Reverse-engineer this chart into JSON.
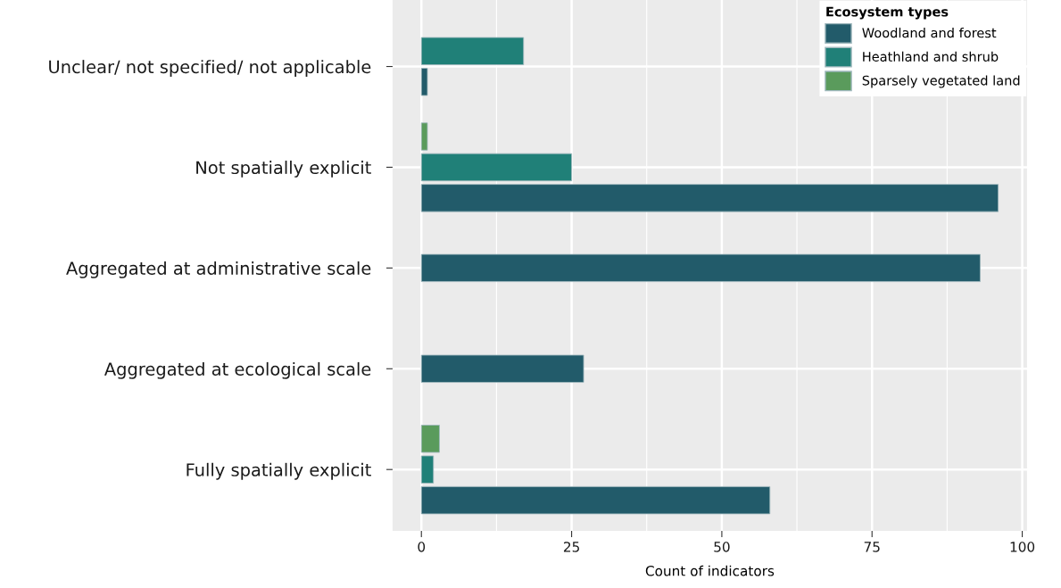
{
  "chart_data": {
    "type": "bar",
    "orientation": "horizontal",
    "xlabel": "Count of indicators",
    "legend_title": "Ecosystem types",
    "categories": [
      "Unclear/ not specified/ not applicable",
      "Not spatially explicit",
      "Aggregated at administrative scale",
      "Aggregated at ecological scale",
      "Fully spatially explicit"
    ],
    "series": [
      {
        "name": "Woodland and forest",
        "color": "#225b6a",
        "values": [
          1,
          96,
          93,
          27,
          58
        ]
      },
      {
        "name": "Heathland and shrub",
        "color": "#208078",
        "values": [
          17,
          25,
          null,
          null,
          2
        ]
      },
      {
        "name": "Sparsely vegetated land",
        "color": "#5a9b5c",
        "values": [
          null,
          1,
          null,
          null,
          3
        ]
      }
    ],
    "xlim": [
      -4.8,
      100.8
    ],
    "xticks": [
      0,
      25,
      50,
      75,
      100
    ],
    "grid": true,
    "legend": "top right"
  }
}
